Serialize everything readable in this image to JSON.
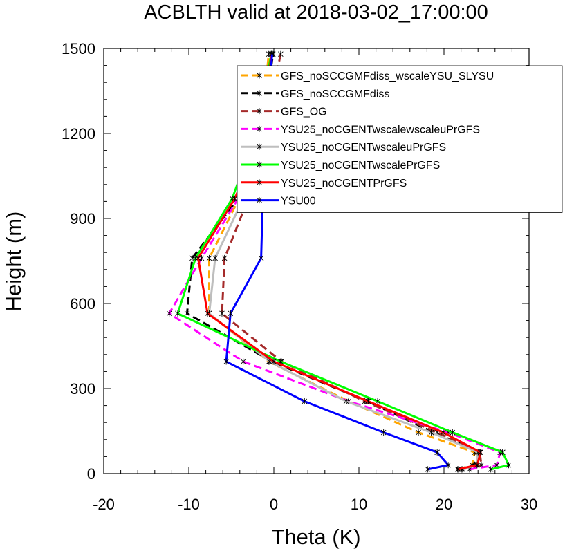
{
  "chart_data": {
    "type": "line",
    "title": "ACBLTH valid at 2018-03-02_17:00:00",
    "xlabel": "Theta (K)",
    "ylabel": "Height (m)",
    "xlim": [
      -20,
      30
    ],
    "ylim": [
      0,
      1500
    ],
    "x_ticks": [
      "-20",
      "-10",
      "0",
      "10",
      "20",
      "30"
    ],
    "y_ticks": [
      "0",
      "300",
      "600",
      "900",
      "1200",
      "1500"
    ],
    "grid": false,
    "legend_position": "upper-right",
    "y": [
      15,
      30,
      75,
      145,
      255,
      395,
      565,
      760,
      970,
      1210,
      1480
    ],
    "series": [
      {
        "name": "GFS_noSCCGMFdiss_wscaleYSU_SLYSU",
        "color": "#ffa500",
        "dash": "dashed",
        "values": [
          21.7,
          23.3,
          23.6,
          17.0,
          8.8,
          -0.6,
          -7.6,
          -7.6,
          -4.1,
          -1.5,
          -0.6
        ]
      },
      {
        "name": "GFS_noSCCGMFdiss",
        "color": "#000000",
        "dash": "dashed",
        "values": [
          21.7,
          23.5,
          24.3,
          18.8,
          11.0,
          -0.2,
          -10.2,
          -9.6,
          -4.2,
          -1.4,
          -0.1
        ]
      },
      {
        "name": "GFS_OG",
        "color": "#a52a2a",
        "dash": "dashed",
        "values": [
          22.1,
          24.4,
          24.2,
          19.2,
          10.7,
          0.9,
          -6.1,
          -5.8,
          -3.0,
          -1.0,
          0.8
        ]
      },
      {
        "name": "YSU25_noCGENTwscalewscaleuPrGFS",
        "color": "#ff00ff",
        "dash": "dashed",
        "values": [
          23.0,
          26.2,
          26.6,
          20.5,
          8.8,
          -3.6,
          -12.3,
          -8.5,
          -4.2,
          0.1,
          -0.3
        ]
      },
      {
        "name": "YSU25_noCGENTwscaleuPrGFS",
        "color": "#bebebe",
        "dash": "solid",
        "values": [
          22.2,
          23.8,
          24.0,
          18.5,
          8.5,
          -0.5,
          -7.6,
          -6.9,
          -3.6,
          -1.1,
          -0.3
        ]
      },
      {
        "name": "YSU25_noCGENTwscalePrGFS",
        "color": "#00ff00",
        "dash": "solid",
        "values": [
          25.5,
          27.6,
          26.9,
          21.0,
          12.2,
          0.8,
          -11.3,
          -9.2,
          -4.9,
          -2.0,
          -0.3
        ]
      },
      {
        "name": "YSU25_noCGENTPrGFS",
        "color": "#ff0000",
        "dash": "solid",
        "values": [
          21.6,
          23.9,
          24.3,
          19.9,
          11.1,
          0.0,
          -7.8,
          -8.9,
          -4.6,
          -1.2,
          -0.3
        ]
      },
      {
        "name": "YSU00",
        "color": "#0000ff",
        "dash": "solid",
        "values": [
          18.1,
          20.5,
          19.2,
          12.9,
          3.6,
          -5.6,
          -5.1,
          -1.5,
          -1.3,
          -0.9,
          -0.2
        ]
      }
    ]
  }
}
